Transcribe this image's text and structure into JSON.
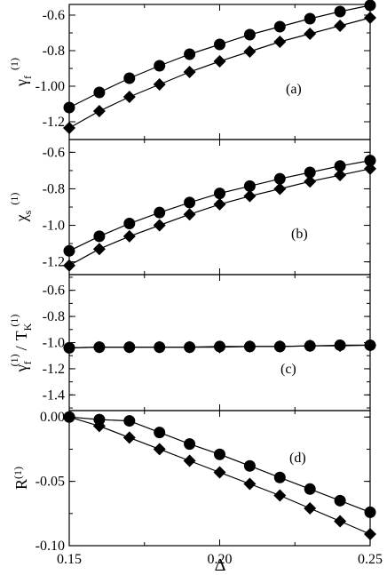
{
  "chart_data": [
    {
      "type": "line",
      "panel_label": "(a)",
      "ylabel": {
        "main": "γ",
        "sub": "f",
        "sup": "(1)"
      },
      "x": [
        0.15,
        0.16,
        0.17,
        0.18,
        0.19,
        0.2,
        0.21,
        0.22,
        0.23,
        0.24,
        0.25
      ],
      "ylim": [
        -1.3,
        -0.54
      ],
      "yticks": [
        -1.2,
        -1.0,
        -0.8,
        -0.6
      ],
      "ytick_labels": [
        "-1.2",
        "-1.00",
        "-0.8",
        "-0.6"
      ],
      "series": [
        {
          "marker": "circle",
          "values": [
            -1.12,
            -1.035,
            -0.955,
            -0.885,
            -0.82,
            -0.765,
            -0.71,
            -0.665,
            -0.62,
            -0.58,
            -0.545
          ]
        },
        {
          "marker": "diamond",
          "values": [
            -1.235,
            -1.14,
            -1.06,
            -0.99,
            -0.92,
            -0.86,
            -0.805,
            -0.75,
            -0.705,
            -0.66,
            -0.615
          ]
        }
      ]
    },
    {
      "type": "line",
      "panel_label": "(b)",
      "ylabel": {
        "main": "χ",
        "sub": "s",
        "sup": "(1)"
      },
      "x": [
        0.15,
        0.16,
        0.17,
        0.18,
        0.19,
        0.2,
        0.21,
        0.22,
        0.23,
        0.24,
        0.25
      ],
      "ylim": [
        -1.27,
        -0.53
      ],
      "yticks": [
        -1.2,
        -1.0,
        -0.8,
        -0.6
      ],
      "ytick_labels": [
        "-1.2",
        "-1.0",
        "-0.8",
        "-0.6"
      ],
      "series": [
        {
          "marker": "circle",
          "values": [
            -1.14,
            -1.06,
            -0.99,
            -0.93,
            -0.875,
            -0.825,
            -0.785,
            -0.745,
            -0.71,
            -0.675,
            -0.645
          ]
        },
        {
          "marker": "diamond",
          "values": [
            -1.22,
            -1.13,
            -1.06,
            -1.0,
            -0.94,
            -0.885,
            -0.84,
            -0.8,
            -0.76,
            -0.725,
            -0.69
          ]
        }
      ]
    },
    {
      "type": "line",
      "panel_label": "(c)",
      "ylabel": {
        "main1": "γ",
        "sub1": "f",
        "sup1": "(1)",
        "sep": "/",
        "main2": "T",
        "sub2": "K",
        "sup2": "(1)"
      },
      "x": [
        0.15,
        0.16,
        0.17,
        0.18,
        0.19,
        0.2,
        0.21,
        0.22,
        0.23,
        0.24,
        0.25
      ],
      "ylim": [
        -1.52,
        -0.48
      ],
      "yticks": [
        -1.4,
        -1.2,
        -1.0,
        -0.8,
        -0.6
      ],
      "ytick_labels": [
        "-1.4",
        "-1.2",
        "-1.0",
        "-0.8",
        "-0.6"
      ],
      "series": [
        {
          "marker": "circle",
          "values": [
            -1.04,
            -1.035,
            -1.035,
            -1.035,
            -1.035,
            -1.03,
            -1.03,
            -1.03,
            -1.025,
            -1.02,
            -1.02
          ]
        },
        {
          "marker": "diamond",
          "values": [
            -1.04,
            -1.035,
            -1.035,
            -1.035,
            -1.035,
            -1.035,
            -1.03,
            -1.03,
            -1.025,
            -1.025,
            -1.02
          ]
        }
      ]
    },
    {
      "type": "line",
      "panel_label": "(d)",
      "ylabel": {
        "main": "R",
        "sup": "(1)"
      },
      "xlabel": "Δ",
      "x": [
        0.15,
        0.16,
        0.17,
        0.18,
        0.19,
        0.2,
        0.21,
        0.22,
        0.23,
        0.24,
        0.25
      ],
      "xlim": [
        0.15,
        0.25
      ],
      "xticks": [
        0.15,
        0.2,
        0.25
      ],
      "xtick_labels": [
        "0.15",
        "0.20",
        "0.25"
      ],
      "ylim": [
        -0.1,
        0.005
      ],
      "yticks": [
        -0.1,
        -0.05,
        0.0
      ],
      "ytick_labels": [
        "-0.10",
        "-0.05",
        "0.00"
      ],
      "series": [
        {
          "marker": "circle",
          "values": [
            0.0,
            -0.002,
            -0.003,
            -0.012,
            -0.021,
            -0.029,
            -0.038,
            -0.047,
            -0.056,
            -0.065,
            -0.074
          ]
        },
        {
          "marker": "diamond",
          "values": [
            0.0,
            -0.007,
            -0.016,
            -0.025,
            -0.034,
            -0.043,
            -0.052,
            -0.061,
            -0.071,
            -0.081,
            -0.091
          ]
        }
      ]
    }
  ]
}
